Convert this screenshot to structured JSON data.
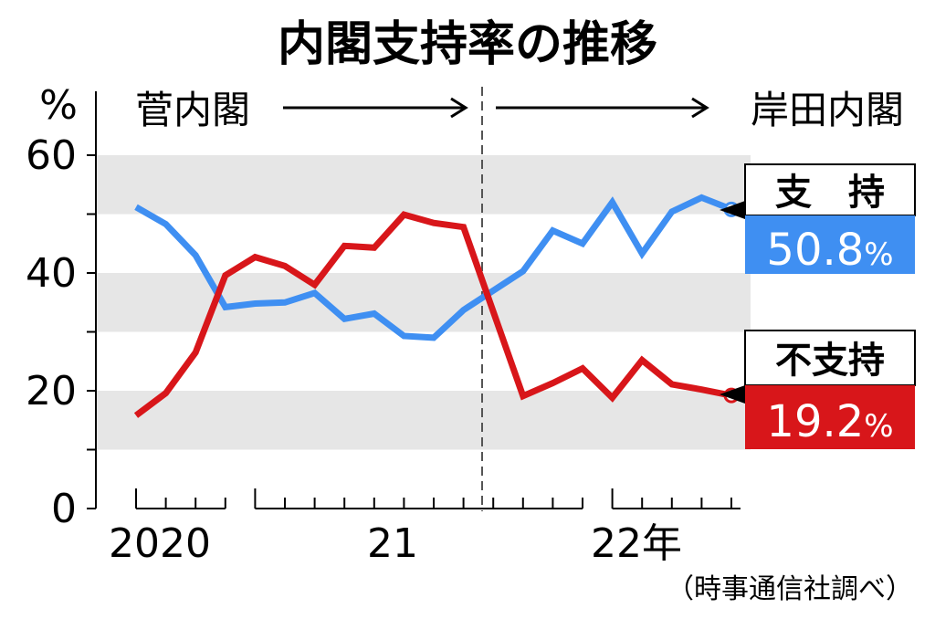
{
  "chart_data": {
    "type": "line",
    "title": "内閣支持率の推移",
    "y_unit": "%",
    "ylim": [
      0,
      60
    ],
    "y_ticks": [
      "0",
      "20",
      "40",
      "60"
    ],
    "x_labels": [
      "2020",
      "21",
      "22年"
    ],
    "grid": "alternating gray bands every 10",
    "x": [
      "2020-09",
      "2020-10",
      "2020-11",
      "2020-12",
      "2021-01",
      "2021-02",
      "2021-03",
      "2021-04",
      "2021-05",
      "2021-06",
      "2021-07",
      "2021-08",
      "2021-09",
      "2021-10",
      "2021-11",
      "2021-12",
      "2022-01",
      "2022-02",
      "2022-03",
      "2022-04",
      "2022-05"
    ],
    "series": [
      {
        "name": "支持",
        "color": "#3f8ff2",
        "values": [
          51.2,
          48.3,
          43.0,
          34.2,
          34.8,
          35.0,
          36.6,
          32.2,
          33.1,
          29.3,
          29.0,
          33.7,
          null,
          40.3,
          47.2,
          45.0,
          52.0,
          43.3,
          50.4,
          52.8,
          50.8
        ]
      },
      {
        "name": "不支持",
        "color": "#d8161a",
        "values": [
          15.8,
          19.6,
          26.5,
          39.6,
          42.7,
          41.2,
          38.0,
          44.6,
          44.3,
          49.9,
          48.5,
          47.8,
          null,
          19.1,
          21.3,
          23.8,
          18.8,
          25.2,
          21.1,
          20.2,
          19.2
        ]
      }
    ],
    "eras": [
      {
        "label": "菅内閣",
        "arrow": "→"
      },
      {
        "label": "岸田内閣",
        "arrow": "→"
      }
    ],
    "callouts": [
      {
        "label": "支　持",
        "value": "50.8",
        "unit": "%",
        "color": "#3f8ff2"
      },
      {
        "label": "不支持",
        "value": "19.2",
        "unit": "%",
        "color": "#d8161a"
      }
    ],
    "source": "（時事通信社調べ）"
  }
}
